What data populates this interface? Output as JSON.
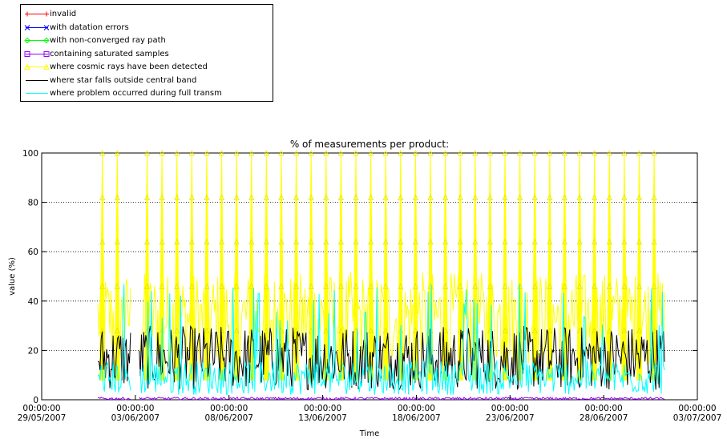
{
  "chart_data": {
    "type": "line",
    "title": "% of measurements per product:",
    "xlabel": "Time",
    "ylabel": "value (%)",
    "ylim": [
      0,
      100
    ],
    "xlim": [
      "2007-05-29 00:00",
      "2007-07-03 00:00"
    ],
    "yticks": [
      0,
      20,
      40,
      60,
      80,
      100
    ],
    "xticks": [
      {
        "time": "00:00:00",
        "date": "29/05/2007"
      },
      {
        "time": "00:00:00",
        "date": "03/06/2007"
      },
      {
        "time": "00:00:00",
        "date": "08/06/2007"
      },
      {
        "time": "00:00:00",
        "date": "13/06/2007"
      },
      {
        "time": "00:00:00",
        "date": "18/06/2007"
      },
      {
        "time": "00:00:00",
        "date": "23/06/2007"
      },
      {
        "time": "00:00:00",
        "date": "28/06/2007"
      },
      {
        "time": "00:00:00",
        "date": "03/07/2007"
      }
    ],
    "grid": true,
    "legend_position": "top-left",
    "data_range": [
      "2007-06-01 00:00",
      "2007-07-01 06:00"
    ],
    "data_gap": [
      "2007-06-02 19:00",
      "2007-06-03 04:00"
    ],
    "series": [
      {
        "name": "invalid",
        "color": "#ff0000",
        "marker": "plus",
        "typical_value": 0
      },
      {
        "name": "with datation errors",
        "color": "#0000ff",
        "marker": "x",
        "typical_value": 0
      },
      {
        "name": "with non-converged ray path",
        "color": "#00ff00",
        "marker": "diamond",
        "typical_value": 0
      },
      {
        "name": "containing saturated samples",
        "color": "#9900ff",
        "marker": "square",
        "typical_value": 1
      },
      {
        "name": "where cosmic rays have been detected",
        "color": "#ffff00",
        "marker": "triangle",
        "typical_value": 40,
        "spikes_to": 100,
        "spike_count": 38
      },
      {
        "name": "where star falls outside central band",
        "color": "#000000",
        "marker": "none",
        "typical_value": 20,
        "max": 36
      },
      {
        "name": "where problem occurred during full transm",
        "color": "#00ffff",
        "marker": "none",
        "typical_value": 10,
        "max": 48
      }
    ]
  }
}
